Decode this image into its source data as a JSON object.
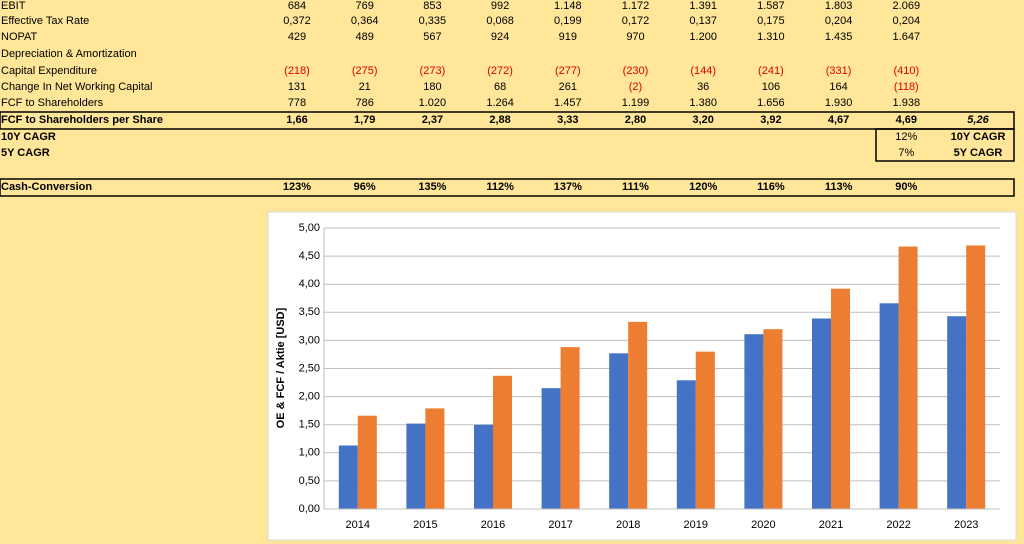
{
  "table": {
    "rows": [
      {
        "label": "EBIT",
        "values": [
          "684",
          "769",
          "853",
          "992",
          "1.148",
          "1.172",
          "1.391",
          "1.587",
          "1.803",
          "2.069"
        ]
      },
      {
        "label": "Effective Tax Rate",
        "values": [
          "0,372",
          "0,364",
          "0,335",
          "0,068",
          "0,199",
          "0,172",
          "0,137",
          "0,175",
          "0,204",
          "0,204"
        ]
      },
      {
        "label": "NOPAT",
        "values": [
          "429",
          "489",
          "567",
          "924",
          "919",
          "970",
          "1.200",
          "1.310",
          "1.435",
          "1.647"
        ]
      },
      {
        "label": "Depreciation & Amortization"
      },
      {
        "label": "Capital Expenditure",
        "values": [
          "(218)",
          "(275)",
          "(273)",
          "(272)",
          "(277)",
          "(230)",
          "(144)",
          "(241)",
          "(331)",
          "(410)"
        ]
      },
      {
        "label": "Change In Net Working Capital",
        "values": [
          "131",
          "21",
          "180",
          "68",
          "261",
          "(2)",
          "36",
          "106",
          "164",
          "(118)"
        ]
      },
      {
        "label": "FCF to Shareholders",
        "values": [
          "778",
          "786",
          "1.020",
          "1.264",
          "1.457",
          "1.199",
          "1.380",
          "1.656",
          "1.930",
          "1.938"
        ]
      },
      {
        "label": "FCF to Shareholders per Share",
        "values": [
          "1,66",
          "1,79",
          "2,37",
          "2,88",
          "3,33",
          "2,80",
          "3,20",
          "3,92",
          "4,67",
          "4,69"
        ],
        "extra": "5,26"
      },
      {
        "label": "10Y CAGR",
        "value": "12%",
        "extra": "10Y CAGR"
      },
      {
        "label": "5Y CAGR",
        "value": "7%",
        "extra": "5Y CAGR"
      },
      {
        "label": "Cash-Conversion",
        "values": [
          "123%",
          "96%",
          "135%",
          "112%",
          "137%",
          "111%",
          "120%",
          "116%",
          "113%",
          "90%"
        ]
      }
    ]
  },
  "chart_data": {
    "type": "bar",
    "y_label": "OE & FCF / Aktie [USD]",
    "categories": [
      "2014",
      "2015",
      "2016",
      "2017",
      "2018",
      "2019",
      "2020",
      "2021",
      "2022",
      "2023"
    ],
    "series": [
      {
        "color": "#4472c4",
        "values": [
          1.13,
          1.52,
          1.5,
          2.15,
          2.77,
          2.29,
          3.11,
          3.39,
          3.66,
          3.43
        ]
      },
      {
        "color": "#ed7d31",
        "values": [
          1.66,
          1.79,
          2.37,
          2.88,
          3.33,
          2.8,
          3.2,
          3.92,
          4.67,
          4.69
        ]
      }
    ],
    "ylim": [
      0,
      5
    ],
    "yticks": [
      {
        "value": 0,
        "label": "0,00"
      },
      {
        "value": 0.5,
        "label": "0,50"
      },
      {
        "value": 1,
        "label": "1,00"
      },
      {
        "value": 1.5,
        "label": "1,50"
      },
      {
        "value": 2,
        "label": "2,00"
      },
      {
        "value": 2.5,
        "label": "2,50"
      },
      {
        "value": 3,
        "label": "3,00"
      },
      {
        "value": 3.5,
        "label": "3,50"
      },
      {
        "value": 4,
        "label": "4,00"
      },
      {
        "value": 4.5,
        "label": "4,50"
      },
      {
        "value": 5,
        "label": "5,00"
      }
    ],
    "grid": true
  }
}
